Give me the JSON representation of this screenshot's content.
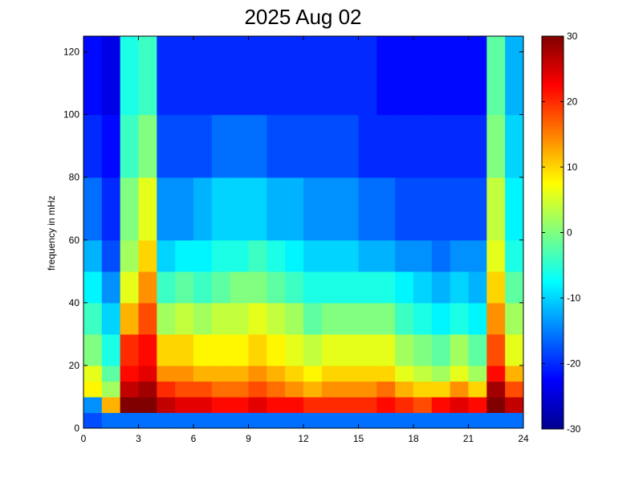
{
  "chart_data": {
    "type": "heatmap",
    "title": "2025 Aug 02",
    "xlabel": "",
    "ylabel": "frequency in mHz",
    "xlim": [
      0,
      24
    ],
    "ylim": [
      0,
      125
    ],
    "x_ticks": [
      "0",
      "3",
      "6",
      "9",
      "12",
      "15",
      "18",
      "21",
      "24"
    ],
    "y_ticks": [
      "0",
      "20",
      "40",
      "60",
      "80",
      "100",
      "120"
    ],
    "colorbar": {
      "range": [
        -30,
        30
      ],
      "ticks": [
        "30",
        "20",
        "10",
        "0",
        "-10",
        "-20",
        "-30"
      ],
      "colormap": "jet"
    },
    "x_hours": [
      0,
      1,
      2,
      3,
      4,
      5,
      6,
      7,
      8,
      9,
      10,
      11,
      12,
      13,
      14,
      15,
      16,
      17,
      18,
      19,
      20,
      21,
      22,
      23
    ],
    "y_freq_mhz": [
      0,
      5,
      10,
      15,
      20,
      30,
      40,
      50,
      60,
      80,
      100,
      125
    ],
    "values_db": [
      [
        -18,
        -14,
        8,
        6,
        0,
        -4,
        -8,
        -12,
        -16,
        -20,
        -22,
        -22
      ],
      [
        -16,
        12,
        2,
        -2,
        -6,
        -10,
        -14,
        -18,
        -20,
        -22,
        -24,
        -24
      ],
      [
        -16,
        30,
        26,
        22,
        20,
        12,
        6,
        2,
        0,
        -4,
        -6,
        -6
      ],
      [
        -16,
        30,
        28,
        24,
        22,
        18,
        14,
        10,
        6,
        0,
        -4,
        -6
      ],
      [
        -16,
        26,
        20,
        14,
        10,
        2,
        -4,
        -10,
        -14,
        -18,
        -20,
        -20
      ],
      [
        -16,
        24,
        18,
        14,
        10,
        4,
        -2,
        -8,
        -14,
        -18,
        -20,
        -20
      ],
      [
        -16,
        24,
        18,
        12,
        8,
        2,
        -4,
        -8,
        -12,
        -18,
        -20,
        -20
      ],
      [
        -16,
        22,
        16,
        12,
        8,
        4,
        -2,
        -6,
        -10,
        -16,
        -20,
        -20
      ],
      [
        -16,
        22,
        16,
        12,
        8,
        4,
        0,
        -6,
        -10,
        -16,
        -20,
        -20
      ],
      [
        -16,
        24,
        18,
        14,
        10,
        6,
        0,
        -4,
        -10,
        -16,
        -20,
        -20
      ],
      [
        -16,
        22,
        16,
        12,
        8,
        4,
        -2,
        -6,
        -12,
        -18,
        -20,
        -20
      ],
      [
        -16,
        22,
        14,
        10,
        6,
        2,
        -4,
        -8,
        -12,
        -18,
        -20,
        -20
      ],
      [
        -16,
        20,
        12,
        8,
        4,
        -2,
        -6,
        -10,
        -14,
        -18,
        -20,
        -20
      ],
      [
        -16,
        20,
        14,
        10,
        6,
        0,
        -6,
        -10,
        -14,
        -18,
        -20,
        -20
      ],
      [
        -16,
        20,
        14,
        10,
        6,
        0,
        -6,
        -10,
        -14,
        -18,
        -20,
        -20
      ],
      [
        -16,
        20,
        14,
        10,
        6,
        0,
        -6,
        -12,
        -16,
        -20,
        -20,
        -20
      ],
      [
        -16,
        22,
        16,
        10,
        6,
        0,
        -6,
        -12,
        -16,
        -20,
        -22,
        -22
      ],
      [
        -16,
        20,
        12,
        6,
        2,
        -4,
        -8,
        -14,
        -18,
        -20,
        -22,
        -22
      ],
      [
        -16,
        18,
        10,
        4,
        0,
        -6,
        -10,
        -14,
        -18,
        -20,
        -22,
        -22
      ],
      [
        -16,
        22,
        10,
        2,
        -2,
        -8,
        -12,
        -16,
        -18,
        -20,
        -22,
        -22
      ],
      [
        -16,
        24,
        14,
        6,
        2,
        -6,
        -10,
        -14,
        -18,
        -20,
        -22,
        -22
      ],
      [
        -16,
        22,
        10,
        2,
        -2,
        -8,
        -12,
        -14,
        -18,
        -20,
        -22,
        -22
      ],
      [
        -16,
        30,
        28,
        22,
        18,
        14,
        10,
        6,
        4,
        0,
        -2,
        -4
      ],
      [
        -16,
        26,
        18,
        12,
        6,
        2,
        -2,
        -6,
        -8,
        -10,
        -12,
        -12
      ]
    ]
  }
}
